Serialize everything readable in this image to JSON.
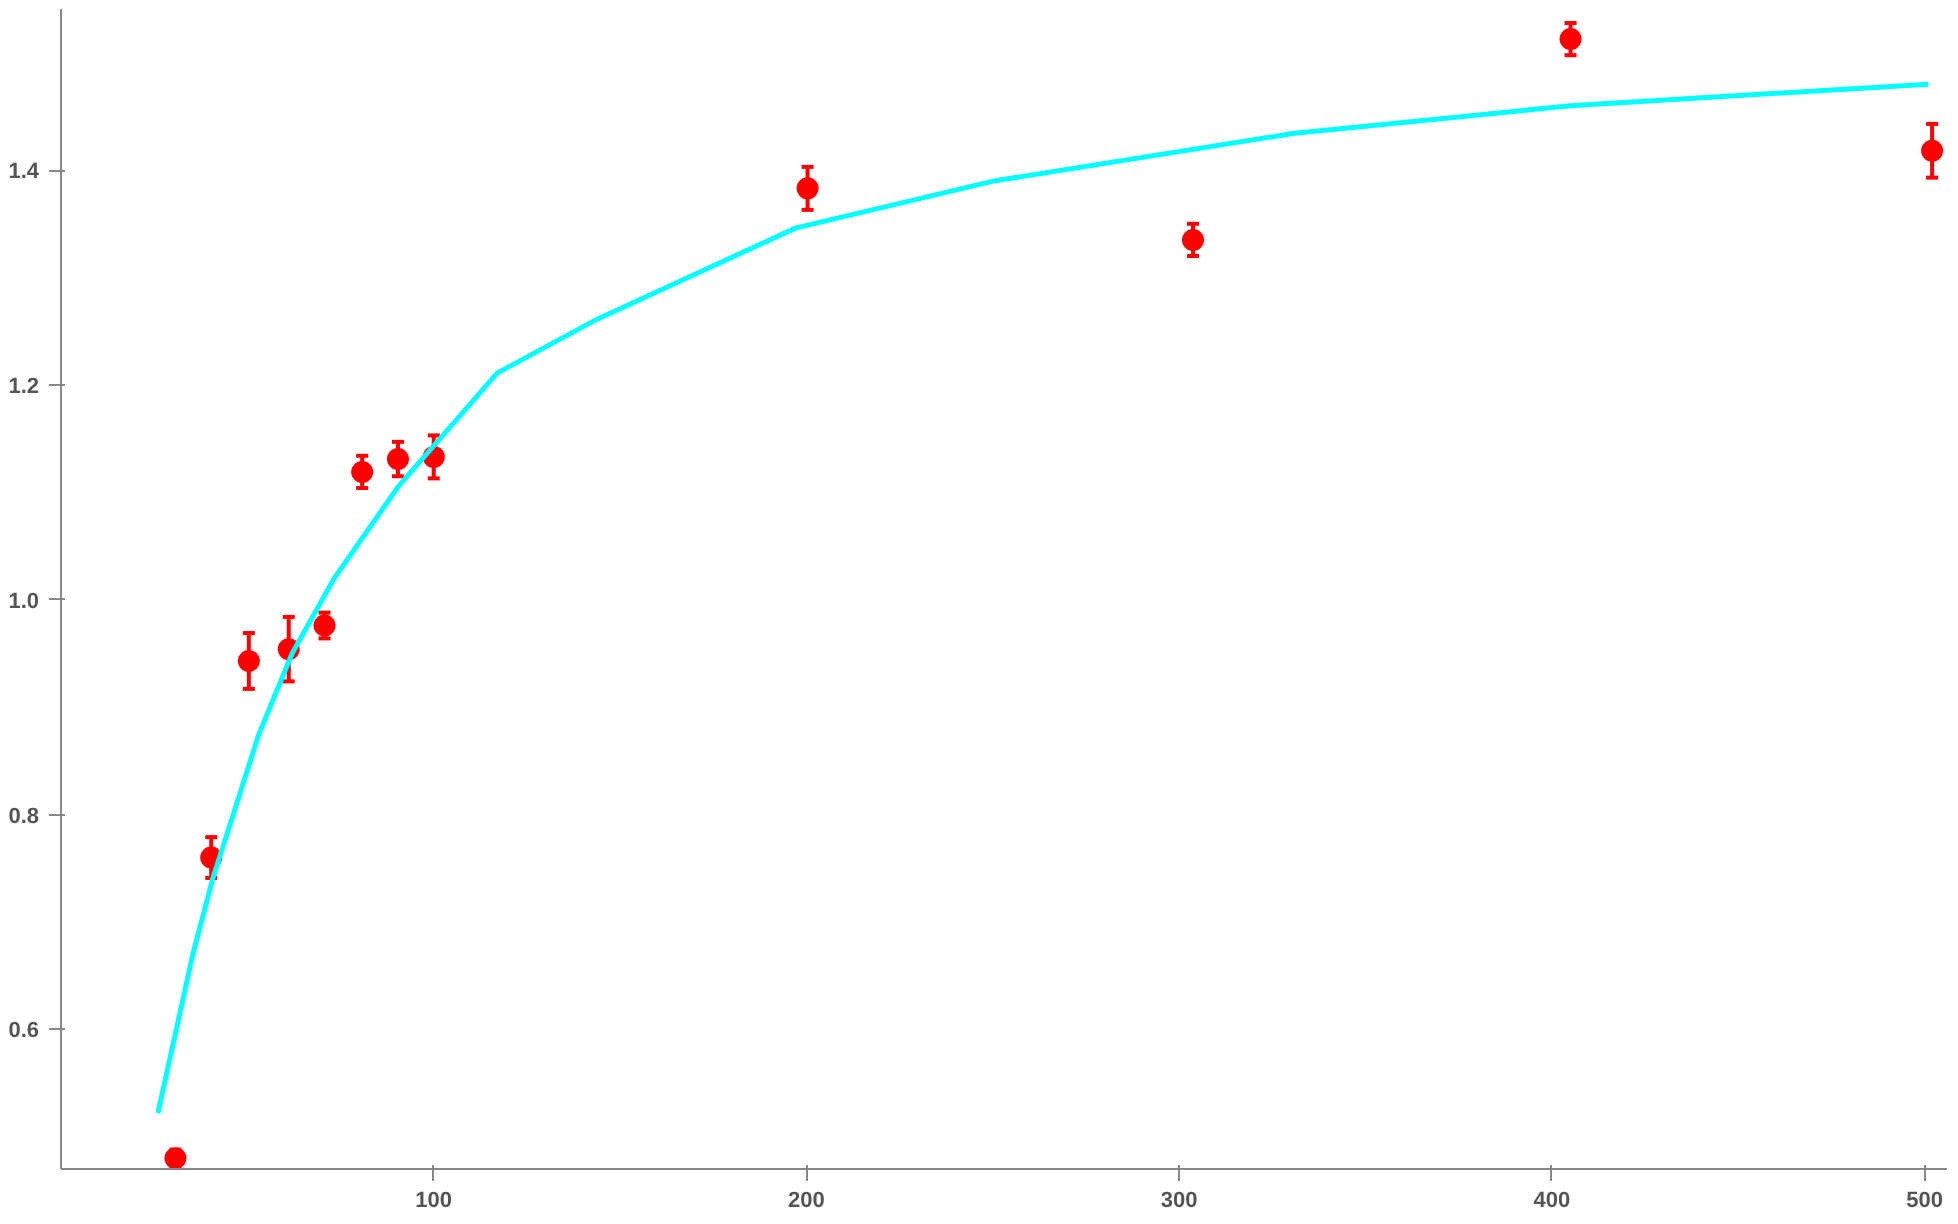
{
  "chart_data": {
    "type": "scatter",
    "xlim": [
      0,
      506
    ],
    "ylim": [
      0.47,
      1.55
    ],
    "xticks": [
      100,
      200,
      300,
      400,
      500
    ],
    "yticks": [
      0.6,
      0.8,
      {
        "value": 1,
        "label": "1.0"
      },
      1.2,
      1.4
    ],
    "grid": false,
    "series": [
      {
        "marker": "circle",
        "color": "#ff0000",
        "x": [
          30.7,
          40.3,
          50.4,
          61.1,
          70.7,
          80.8,
          90.4,
          100,
          200.3,
          303.7,
          405,
          502
        ],
        "values": [
          0.48,
          0.76,
          0.943,
          0.954,
          0.976,
          1.119,
          1.131,
          1.133,
          1.383,
          1.335,
          1.522,
          1.418
        ],
        "errors": [
          0.008,
          0.019,
          0.026,
          0.03,
          0.012,
          0.015,
          0.016,
          0.02,
          0.02,
          0.015,
          0.015,
          0.025
        ]
      },
      {
        "type": "line",
        "marker": "none",
        "color": "#00ffff",
        "x": [
          26,
          35.3,
          40.6,
          53,
          62,
          73.3,
          90.4,
          117,
          143.7,
          197,
          250.4,
          330.4,
          405,
          501
        ],
        "values": [
          0.522,
          0.669,
          0.739,
          0.874,
          0.95,
          1.02,
          1.105,
          1.211,
          1.261,
          1.346,
          1.39,
          1.434,
          1.46,
          1.48
        ]
      }
    ]
  }
}
